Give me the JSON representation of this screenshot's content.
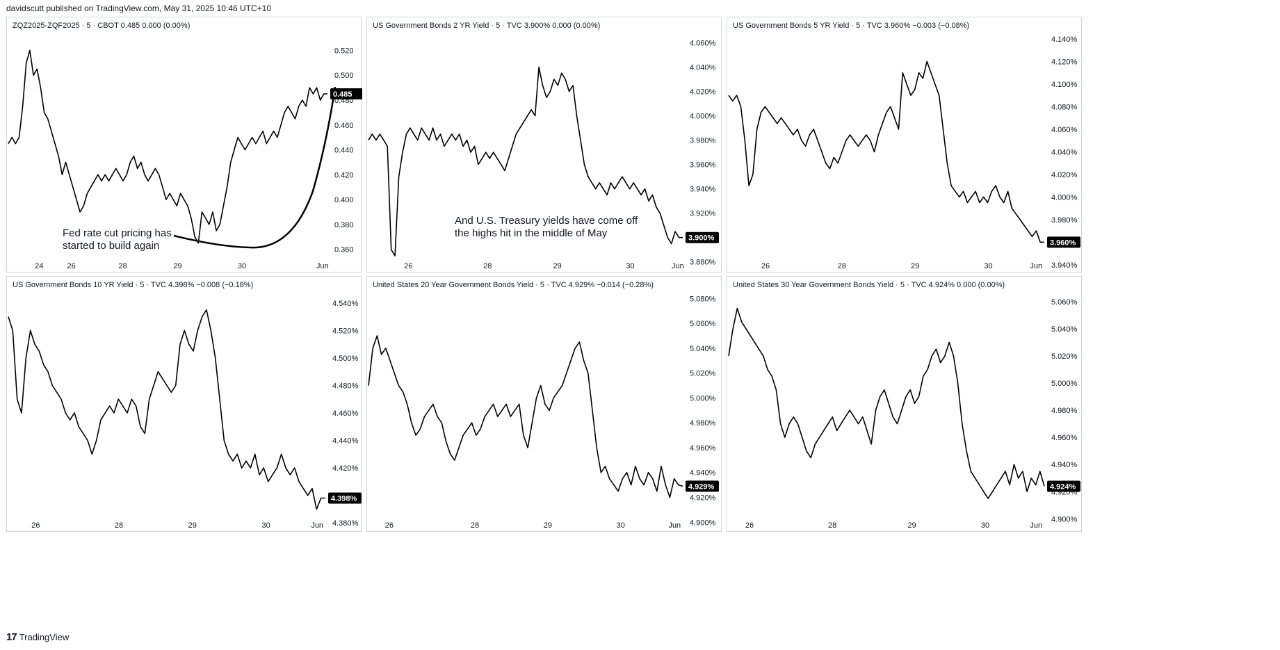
{
  "header": "davidscutt published on TradingView.com, May 31, 2025 10:46 UTC+10",
  "footer": {
    "logo": "17",
    "brand": "TradingView"
  },
  "chart_data": [
    {
      "type": "line",
      "title": "ZQZ2025-ZQF2025 · 5 · CBOT  0.485  0.000 (0.00%)",
      "last_value": 0.485,
      "last_label": "0.485",
      "ylim": [
        0.343,
        0.532
      ],
      "y_ticks": [
        0.36,
        0.38,
        0.4,
        0.42,
        0.44,
        0.46,
        0.48,
        0.5,
        0.52
      ],
      "y_tick_labels": [
        "0.360",
        "0.380",
        "0.400",
        "0.420",
        "0.440",
        "0.460",
        "0.480",
        "0.500",
        "0.520"
      ],
      "xlim": [
        0,
        100
      ],
      "x_ticks": [
        {
          "x": 10,
          "label": "24"
        },
        {
          "x": 20,
          "label": "26"
        },
        {
          "x": 36,
          "label": "28"
        },
        {
          "x": 53,
          "label": "29"
        },
        {
          "x": 73,
          "label": "30"
        },
        {
          "x": 98,
          "label": "Jun"
        }
      ],
      "values": [
        0.445,
        0.45,
        0.445,
        0.45,
        0.475,
        0.51,
        0.52,
        0.5,
        0.505,
        0.49,
        0.47,
        0.465,
        0.455,
        0.445,
        0.435,
        0.42,
        0.43,
        0.42,
        0.41,
        0.4,
        0.39,
        0.395,
        0.405,
        0.41,
        0.415,
        0.42,
        0.415,
        0.42,
        0.415,
        0.42,
        0.425,
        0.42,
        0.415,
        0.42,
        0.43,
        0.435,
        0.425,
        0.43,
        0.42,
        0.415,
        0.42,
        0.425,
        0.42,
        0.41,
        0.4,
        0.405,
        0.4,
        0.395,
        0.405,
        0.4,
        0.395,
        0.385,
        0.37,
        0.365,
        0.39,
        0.385,
        0.38,
        0.39,
        0.375,
        0.38,
        0.395,
        0.41,
        0.43,
        0.44,
        0.45,
        0.445,
        0.44,
        0.445,
        0.45,
        0.445,
        0.45,
        0.455,
        0.445,
        0.45,
        0.455,
        0.45,
        0.46,
        0.47,
        0.475,
        0.47,
        0.465,
        0.475,
        0.48,
        0.475,
        0.49,
        0.485,
        0.49,
        0.48,
        0.485,
        0.485
      ],
      "annotation": {
        "text": [
          "Fed rate cut pricing has",
          "started to build again"
        ]
      }
    },
    {
      "type": "line",
      "title": "US Government Bonds 2 YR Yield · 5 · TVC  3.900%  0.000 (0.00%)",
      "last_value": 3.9,
      "last_label": "3.900%",
      "ylim": [
        3.873,
        4.066
      ],
      "y_ticks": [
        3.88,
        3.9,
        3.92,
        3.94,
        3.96,
        3.98,
        4.0,
        4.02,
        4.04,
        4.06
      ],
      "y_tick_labels": [
        "3.880%",
        "3.900%",
        "3.920%",
        "3.940%",
        "3.960%",
        "3.980%",
        "4.000%",
        "4.020%",
        "4.040%",
        "4.060%"
      ],
      "xlim": [
        0,
        100
      ],
      "x_ticks": [
        {
          "x": 13,
          "label": "26"
        },
        {
          "x": 38,
          "label": "28"
        },
        {
          "x": 60,
          "label": "29"
        },
        {
          "x": 83,
          "label": "30"
        },
        {
          "x": 98,
          "label": "Jun"
        }
      ],
      "values": [
        3.98,
        3.985,
        3.98,
        3.985,
        3.98,
        3.975,
        3.89,
        3.885,
        3.95,
        3.97,
        3.985,
        3.99,
        3.985,
        3.98,
        3.99,
        3.985,
        3.98,
        3.99,
        3.98,
        3.985,
        3.975,
        3.98,
        3.985,
        3.98,
        3.985,
        3.975,
        3.98,
        3.97,
        3.975,
        3.96,
        3.965,
        3.97,
        3.965,
        3.97,
        3.965,
        3.96,
        3.955,
        3.965,
        3.975,
        3.985,
        3.99,
        3.995,
        4.0,
        4.005,
        4.0,
        4.04,
        4.025,
        4.015,
        4.02,
        4.03,
        4.025,
        4.035,
        4.03,
        4.02,
        4.025,
        4.0,
        3.98,
        3.96,
        3.95,
        3.945,
        3.94,
        3.945,
        3.94,
        3.935,
        3.945,
        3.94,
        3.945,
        3.95,
        3.945,
        3.94,
        3.945,
        3.94,
        3.935,
        3.94,
        3.93,
        3.935,
        3.925,
        3.92,
        3.91,
        3.9,
        3.895,
        3.905,
        3.9,
        3.9
      ],
      "annotation": {
        "text": [
          "And U.S. Treasury yields have come off",
          "the highs hit in the middle of May"
        ]
      }
    },
    {
      "type": "line",
      "title": "US Government Bonds 5 YR Yield · 5 · TVC  3.960%  −0.003 (−0.08%)",
      "last_value": 3.96,
      "last_label": "3.960%",
      "ylim": [
        3.935,
        4.143
      ],
      "y_ticks": [
        3.94,
        3.96,
        3.98,
        4.0,
        4.02,
        4.04,
        4.06,
        4.08,
        4.1,
        4.12,
        4.14
      ],
      "y_tick_labels": [
        "3.940%",
        "3.960%",
        "3.980%",
        "4.000%",
        "4.020%",
        "4.040%",
        "4.060%",
        "4.080%",
        "4.100%",
        "4.120%",
        "4.140%"
      ],
      "xlim": [
        0,
        100
      ],
      "x_ticks": [
        {
          "x": 12,
          "label": "26"
        },
        {
          "x": 36,
          "label": "28"
        },
        {
          "x": 59,
          "label": "29"
        },
        {
          "x": 82,
          "label": "30"
        },
        {
          "x": 97,
          "label": "Jun"
        }
      ],
      "values": [
        4.09,
        4.085,
        4.09,
        4.08,
        4.05,
        4.01,
        4.02,
        4.06,
        4.075,
        4.08,
        4.075,
        4.07,
        4.065,
        4.07,
        4.065,
        4.06,
        4.055,
        4.06,
        4.05,
        4.045,
        4.055,
        4.06,
        4.05,
        4.04,
        4.03,
        4.025,
        4.035,
        4.03,
        4.04,
        4.05,
        4.055,
        4.05,
        4.045,
        4.05,
        4.055,
        4.05,
        4.04,
        4.055,
        4.065,
        4.075,
        4.08,
        4.07,
        4.06,
        4.11,
        4.1,
        4.09,
        4.095,
        4.11,
        4.105,
        4.12,
        4.11,
        4.1,
        4.09,
        4.06,
        4.03,
        4.01,
        4.005,
        4.0,
        4.005,
        3.995,
        4.0,
        4.005,
        3.995,
        4.0,
        3.995,
        4.005,
        4.01,
        4.0,
        3.995,
        4.005,
        3.99,
        3.985,
        3.98,
        3.975,
        3.97,
        3.965,
        3.97,
        3.96,
        3.96
      ]
    },
    {
      "type": "line",
      "title": "US Government Bonds 10 YR Yield · 5 · TVC  4.398%  −0.008 (−0.18%)",
      "last_value": 4.398,
      "last_label": "4.398%",
      "ylim": [
        4.375,
        4.546
      ],
      "y_ticks": [
        4.38,
        4.4,
        4.42,
        4.44,
        4.46,
        4.48,
        4.5,
        4.52,
        4.54
      ],
      "y_tick_labels": [
        "4.380%",
        "4.400%",
        "4.420%",
        "4.440%",
        "4.460%",
        "4.480%",
        "4.500%",
        "4.520%",
        "4.540%"
      ],
      "xlim": [
        0,
        100
      ],
      "x_ticks": [
        {
          "x": 9,
          "label": "26"
        },
        {
          "x": 35,
          "label": "28"
        },
        {
          "x": 58,
          "label": "29"
        },
        {
          "x": 81,
          "label": "30"
        },
        {
          "x": 97,
          "label": "Jun"
        }
      ],
      "values": [
        4.53,
        4.52,
        4.47,
        4.46,
        4.5,
        4.52,
        4.51,
        4.505,
        4.495,
        4.49,
        4.48,
        4.475,
        4.47,
        4.46,
        4.455,
        4.46,
        4.45,
        4.445,
        4.44,
        4.43,
        4.44,
        4.455,
        4.46,
        4.465,
        4.46,
        4.47,
        4.465,
        4.46,
        4.47,
        4.465,
        4.45,
        4.445,
        4.47,
        4.48,
        4.49,
        4.485,
        4.48,
        4.475,
        4.48,
        4.51,
        4.52,
        4.51,
        4.505,
        4.52,
        4.53,
        4.535,
        4.52,
        4.5,
        4.47,
        4.44,
        4.43,
        4.425,
        4.43,
        4.42,
        4.425,
        4.42,
        4.43,
        4.415,
        4.42,
        4.41,
        4.415,
        4.42,
        4.43,
        4.42,
        4.415,
        4.42,
        4.41,
        4.405,
        4.4,
        4.405,
        4.39,
        4.398,
        4.398
      ]
    },
    {
      "type": "line",
      "title": "United States 20 Year Government Bonds Yield · 5 · TVC  4.929%  −0.014 (−0.28%)",
      "last_value": 4.929,
      "last_label": "4.929%",
      "ylim": [
        4.894,
        5.083
      ],
      "y_ticks": [
        4.9,
        4.92,
        4.94,
        4.96,
        4.98,
        5.0,
        5.02,
        5.04,
        5.06,
        5.08
      ],
      "y_tick_labels": [
        "4.900%",
        "4.920%",
        "4.940%",
        "4.960%",
        "4.980%",
        "5.000%",
        "5.020%",
        "5.040%",
        "5.060%",
        "5.080%"
      ],
      "xlim": [
        0,
        100
      ],
      "x_ticks": [
        {
          "x": 7,
          "label": "26"
        },
        {
          "x": 34,
          "label": "28"
        },
        {
          "x": 57,
          "label": "29"
        },
        {
          "x": 80,
          "label": "30"
        },
        {
          "x": 97,
          "label": "Jun"
        }
      ],
      "values": [
        5.01,
        5.04,
        5.05,
        5.035,
        5.04,
        5.03,
        5.02,
        5.01,
        5.005,
        4.995,
        4.98,
        4.97,
        4.975,
        4.985,
        4.99,
        4.995,
        4.985,
        4.98,
        4.965,
        4.955,
        4.95,
        4.96,
        4.97,
        4.975,
        4.98,
        4.97,
        4.975,
        4.985,
        4.99,
        4.995,
        4.985,
        4.99,
        4.995,
        4.985,
        4.99,
        4.995,
        4.97,
        4.96,
        4.98,
        5.0,
        5.01,
        4.995,
        4.99,
        5.0,
        5.005,
        5.01,
        5.02,
        5.03,
        5.04,
        5.045,
        5.03,
        5.02,
        4.99,
        4.96,
        4.94,
        4.945,
        4.935,
        4.93,
        4.925,
        4.935,
        4.94,
        4.93,
        4.945,
        4.935,
        4.93,
        4.94,
        4.935,
        4.925,
        4.945,
        4.93,
        4.92,
        4.935,
        4.93,
        4.929
      ]
    },
    {
      "type": "line",
      "title": "United States 30 Year Government Bonds Yield · 5 · TVC  4.924%  0.000 (0.00%)",
      "last_value": 4.924,
      "last_label": "4.924%",
      "ylim": [
        4.892,
        5.065
      ],
      "y_ticks": [
        4.9,
        4.92,
        4.94,
        4.96,
        4.98,
        5.0,
        5.02,
        5.04,
        5.06
      ],
      "y_tick_labels": [
        "4.900%",
        "4.920%",
        "4.940%",
        "4.960%",
        "4.980%",
        "5.000%",
        "5.020%",
        "5.040%",
        "5.060%"
      ],
      "xlim": [
        0,
        100
      ],
      "x_ticks": [
        {
          "x": 7,
          "label": "26"
        },
        {
          "x": 33,
          "label": "28"
        },
        {
          "x": 58,
          "label": "29"
        },
        {
          "x": 81,
          "label": "30"
        },
        {
          "x": 97,
          "label": "Jun"
        }
      ],
      "values": [
        5.02,
        5.04,
        5.055,
        5.045,
        5.04,
        5.035,
        5.03,
        5.025,
        5.02,
        5.01,
        5.005,
        4.995,
        4.97,
        4.96,
        4.97,
        4.975,
        4.97,
        4.96,
        4.95,
        4.945,
        4.955,
        4.96,
        4.965,
        4.97,
        4.975,
        4.965,
        4.97,
        4.975,
        4.98,
        4.975,
        4.97,
        4.975,
        4.965,
        4.955,
        4.98,
        4.99,
        4.995,
        4.985,
        4.975,
        4.97,
        4.98,
        4.99,
        4.995,
        4.985,
        4.99,
        5.005,
        5.01,
        5.02,
        5.025,
        5.015,
        5.02,
        5.03,
        5.02,
        5.0,
        4.97,
        4.95,
        4.935,
        4.93,
        4.925,
        4.92,
        4.915,
        4.92,
        4.925,
        4.93,
        4.935,
        4.925,
        4.94,
        4.93,
        4.935,
        4.92,
        4.93,
        4.925,
        4.935,
        4.924
      ]
    }
  ]
}
